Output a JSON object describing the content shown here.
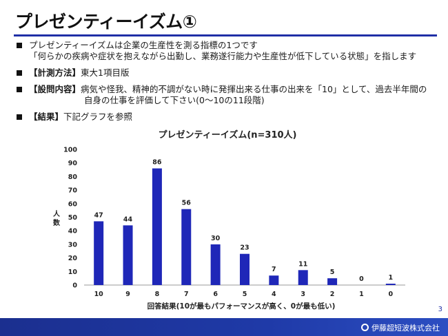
{
  "slide": {
    "title": "プレゼンティーイズム①",
    "page_number": "3",
    "company": "伊藤超短波株式会社"
  },
  "bullets": [
    {
      "label": "",
      "line1": "プレゼンティーイズムは企業の生産性を測る指標の1つです",
      "line2": "「何らかの疾病や症状を抱えながら出勤し、業務遂行能力や生産性が低下している状態」を指します"
    },
    {
      "label": "【計測方法】",
      "line1": "東大1項目版",
      "line2": ""
    },
    {
      "label": "【設問内容】",
      "line1": "病気や怪我、精神的不調がない時に発揮出来る仕事の出来を「10」として、過去半年間の",
      "line2": "自身の仕事を評価して下さい(0～10の11段階)"
    },
    {
      "label": "【結果】",
      "line1": "下記グラフを参照",
      "line2": ""
    }
  ],
  "chart_data": {
    "type": "bar",
    "title": "プレゼンティーイズム(n=310人)",
    "xlabel": "回答結果(10が最もパフォーマンスが高く、0が最も低い)",
    "ylabel": "人数",
    "categories": [
      "10",
      "9",
      "8",
      "7",
      "6",
      "5",
      "4",
      "3",
      "2",
      "1",
      "0"
    ],
    "values": [
      47,
      44,
      86,
      56,
      30,
      23,
      7,
      11,
      5,
      0,
      1
    ],
    "ylim": [
      0,
      100
    ],
    "yticks": [
      0,
      10,
      20,
      30,
      40,
      50,
      60,
      70,
      80,
      90,
      100
    ],
    "bar_color": "#1f27b8",
    "grid": false,
    "legend": "none"
  }
}
